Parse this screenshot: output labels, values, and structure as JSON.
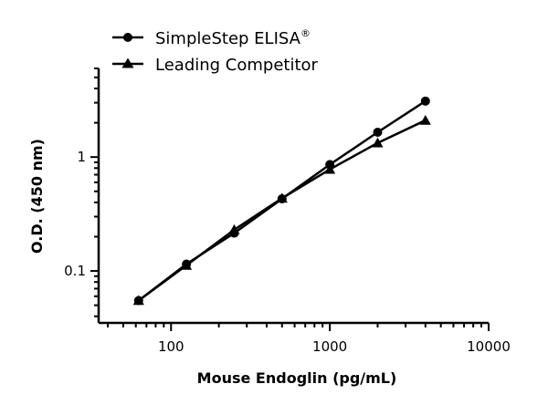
{
  "chart_data": {
    "type": "line",
    "title": "",
    "xlabel": "Mouse Endoglin (pg/mL)",
    "ylabel": "O.D. (450 nm)",
    "xscale": "log",
    "yscale": "log",
    "xlim": [
      35,
      10000
    ],
    "ylim": [
      0.035,
      6
    ],
    "xticks": [
      {
        "value": 100,
        "label": "100"
      },
      {
        "value": 1000,
        "label": "1000"
      },
      {
        "value": 10000,
        "label": "10000"
      }
    ],
    "yticks": [
      {
        "value": 0.1,
        "label": "0.1"
      },
      {
        "value": 1,
        "label": "1"
      }
    ],
    "grid": false,
    "legend_position": "top-left",
    "series": [
      {
        "name": "SimpleStep ELISA",
        "name_sup": "®",
        "marker": "circle",
        "color": "#000000",
        "x": [
          62.5,
          125,
          250,
          500,
          1000,
          2000,
          4000
        ],
        "y": [
          0.055,
          0.115,
          0.215,
          0.43,
          0.86,
          1.65,
          3.1
        ]
      },
      {
        "name": "Leading Competitor",
        "marker": "triangle",
        "color": "#000000",
        "x": [
          62.5,
          125,
          250,
          500,
          1000,
          2000,
          4000
        ],
        "y": [
          0.055,
          0.112,
          0.23,
          0.435,
          0.78,
          1.33,
          2.1
        ]
      }
    ]
  }
}
